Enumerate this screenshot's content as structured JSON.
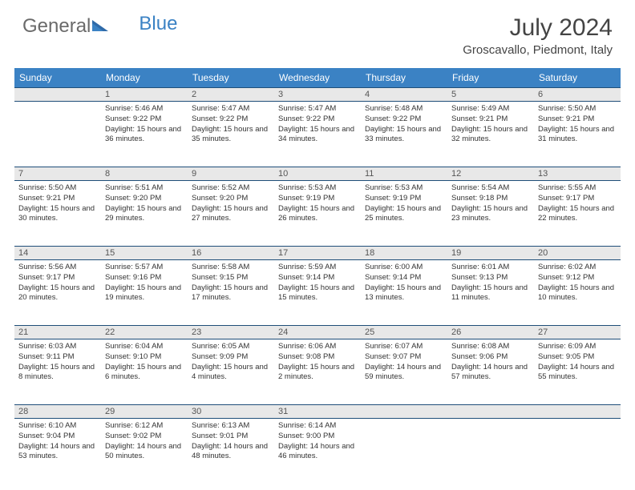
{
  "logo": {
    "text1": "General",
    "text2": "Blue"
  },
  "header": {
    "month": "July 2024",
    "location": "Groscavallo, Piedmont, Italy"
  },
  "colors": {
    "header_bg": "#3b82c4",
    "header_text": "#ffffff",
    "daynum_bg": "#e8e8e8",
    "border": "#1f4e79",
    "text": "#333333"
  },
  "weekdays": [
    "Sunday",
    "Monday",
    "Tuesday",
    "Wednesday",
    "Thursday",
    "Friday",
    "Saturday"
  ],
  "weeks": [
    [
      null,
      {
        "n": "1",
        "sr": "5:46 AM",
        "ss": "9:22 PM",
        "dl": "15 hours and 36 minutes."
      },
      {
        "n": "2",
        "sr": "5:47 AM",
        "ss": "9:22 PM",
        "dl": "15 hours and 35 minutes."
      },
      {
        "n": "3",
        "sr": "5:47 AM",
        "ss": "9:22 PM",
        "dl": "15 hours and 34 minutes."
      },
      {
        "n": "4",
        "sr": "5:48 AM",
        "ss": "9:22 PM",
        "dl": "15 hours and 33 minutes."
      },
      {
        "n": "5",
        "sr": "5:49 AM",
        "ss": "9:21 PM",
        "dl": "15 hours and 32 minutes."
      },
      {
        "n": "6",
        "sr": "5:50 AM",
        "ss": "9:21 PM",
        "dl": "15 hours and 31 minutes."
      }
    ],
    [
      {
        "n": "7",
        "sr": "5:50 AM",
        "ss": "9:21 PM",
        "dl": "15 hours and 30 minutes."
      },
      {
        "n": "8",
        "sr": "5:51 AM",
        "ss": "9:20 PM",
        "dl": "15 hours and 29 minutes."
      },
      {
        "n": "9",
        "sr": "5:52 AM",
        "ss": "9:20 PM",
        "dl": "15 hours and 27 minutes."
      },
      {
        "n": "10",
        "sr": "5:53 AM",
        "ss": "9:19 PM",
        "dl": "15 hours and 26 minutes."
      },
      {
        "n": "11",
        "sr": "5:53 AM",
        "ss": "9:19 PM",
        "dl": "15 hours and 25 minutes."
      },
      {
        "n": "12",
        "sr": "5:54 AM",
        "ss": "9:18 PM",
        "dl": "15 hours and 23 minutes."
      },
      {
        "n": "13",
        "sr": "5:55 AM",
        "ss": "9:17 PM",
        "dl": "15 hours and 22 minutes."
      }
    ],
    [
      {
        "n": "14",
        "sr": "5:56 AM",
        "ss": "9:17 PM",
        "dl": "15 hours and 20 minutes."
      },
      {
        "n": "15",
        "sr": "5:57 AM",
        "ss": "9:16 PM",
        "dl": "15 hours and 19 minutes."
      },
      {
        "n": "16",
        "sr": "5:58 AM",
        "ss": "9:15 PM",
        "dl": "15 hours and 17 minutes."
      },
      {
        "n": "17",
        "sr": "5:59 AM",
        "ss": "9:14 PM",
        "dl": "15 hours and 15 minutes."
      },
      {
        "n": "18",
        "sr": "6:00 AM",
        "ss": "9:14 PM",
        "dl": "15 hours and 13 minutes."
      },
      {
        "n": "19",
        "sr": "6:01 AM",
        "ss": "9:13 PM",
        "dl": "15 hours and 11 minutes."
      },
      {
        "n": "20",
        "sr": "6:02 AM",
        "ss": "9:12 PM",
        "dl": "15 hours and 10 minutes."
      }
    ],
    [
      {
        "n": "21",
        "sr": "6:03 AM",
        "ss": "9:11 PM",
        "dl": "15 hours and 8 minutes."
      },
      {
        "n": "22",
        "sr": "6:04 AM",
        "ss": "9:10 PM",
        "dl": "15 hours and 6 minutes."
      },
      {
        "n": "23",
        "sr": "6:05 AM",
        "ss": "9:09 PM",
        "dl": "15 hours and 4 minutes."
      },
      {
        "n": "24",
        "sr": "6:06 AM",
        "ss": "9:08 PM",
        "dl": "15 hours and 2 minutes."
      },
      {
        "n": "25",
        "sr": "6:07 AM",
        "ss": "9:07 PM",
        "dl": "14 hours and 59 minutes."
      },
      {
        "n": "26",
        "sr": "6:08 AM",
        "ss": "9:06 PM",
        "dl": "14 hours and 57 minutes."
      },
      {
        "n": "27",
        "sr": "6:09 AM",
        "ss": "9:05 PM",
        "dl": "14 hours and 55 minutes."
      }
    ],
    [
      {
        "n": "28",
        "sr": "6:10 AM",
        "ss": "9:04 PM",
        "dl": "14 hours and 53 minutes."
      },
      {
        "n": "29",
        "sr": "6:12 AM",
        "ss": "9:02 PM",
        "dl": "14 hours and 50 minutes."
      },
      {
        "n": "30",
        "sr": "6:13 AM",
        "ss": "9:01 PM",
        "dl": "14 hours and 48 minutes."
      },
      {
        "n": "31",
        "sr": "6:14 AM",
        "ss": "9:00 PM",
        "dl": "14 hours and 46 minutes."
      },
      null,
      null,
      null
    ]
  ],
  "labels": {
    "sunrise": "Sunrise:",
    "sunset": "Sunset:",
    "daylight": "Daylight:"
  }
}
